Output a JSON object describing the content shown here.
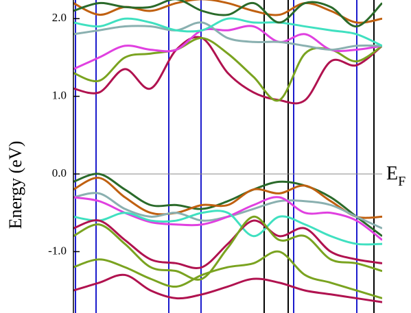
{
  "chart_data": {
    "type": "line",
    "y_label": "Energy (eV)",
    "fermi_label": {
      "main": "E",
      "sub": "F"
    },
    "fermi_level": 0,
    "x": [
      0,
      1,
      2,
      3,
      4,
      5,
      6,
      7,
      8,
      9,
      10,
      11,
      12
    ],
    "xlim": [
      0,
      12
    ],
    "ylim": [
      -1.79,
      2.24
    ],
    "yticks": [
      {
        "value": -1,
        "label": "-1.0"
      },
      {
        "value": 0,
        "label": "0.0"
      },
      {
        "value": 1,
        "label": "1.0"
      },
      {
        "value": 2,
        "label": "2.0"
      }
    ],
    "series": [
      {
        "color": "#b0124f",
        "values": [
          1.1,
          1.05,
          1.35,
          1.1,
          1.6,
          1.75,
          1.3,
          1.05,
          0.95,
          0.95,
          1.45,
          1.4,
          1.65
        ]
      },
      {
        "color": "#7aa320",
        "values": [
          1.3,
          1.2,
          1.5,
          1.55,
          1.6,
          1.75,
          1.55,
          1.25,
          0.95,
          1.55,
          1.6,
          1.45,
          1.65
        ]
      },
      {
        "color": "#e040e0",
        "values": [
          1.35,
          1.5,
          1.65,
          1.6,
          1.6,
          1.85,
          1.85,
          1.9,
          1.7,
          1.8,
          1.6,
          1.6,
          1.65
        ]
      },
      {
        "color": "#8ab0b0",
        "values": [
          1.8,
          1.85,
          1.9,
          1.9,
          1.85,
          1.95,
          1.75,
          1.7,
          1.7,
          1.65,
          1.6,
          1.65,
          1.65
        ]
      },
      {
        "color": "#40e0c0",
        "values": [
          1.95,
          1.9,
          2.0,
          1.95,
          1.85,
          1.85,
          2.0,
          1.95,
          1.95,
          1.9,
          1.85,
          1.8,
          1.65
        ]
      },
      {
        "color": "#c06010",
        "values": [
          2.2,
          2.05,
          2.15,
          2.1,
          2.2,
          2.25,
          2.2,
          2.1,
          2.05,
          2.2,
          2.1,
          1.95,
          2.0
        ]
      },
      {
        "color": "#2a6a2a",
        "values": [
          2.1,
          2.2,
          2.15,
          2.15,
          2.25,
          2.1,
          2.05,
          2.2,
          1.95,
          2.2,
          2.15,
          1.9,
          2.2
        ]
      },
      {
        "color": "#2a6a2a",
        "values": [
          -0.1,
          0.0,
          -0.2,
          -0.4,
          -0.4,
          -0.45,
          -0.35,
          -0.2,
          -0.1,
          -0.15,
          -0.3,
          -0.55,
          -0.8
        ]
      },
      {
        "color": "#c06010",
        "values": [
          -0.2,
          -0.05,
          -0.3,
          -0.5,
          -0.5,
          -0.4,
          -0.4,
          -0.2,
          -0.25,
          -0.15,
          -0.35,
          -0.55,
          -0.55
        ]
      },
      {
        "color": "#8ab0b0",
        "values": [
          -0.3,
          -0.25,
          -0.45,
          -0.55,
          -0.5,
          -0.6,
          -0.55,
          -0.45,
          -0.35,
          -0.35,
          -0.4,
          -0.55,
          -0.7
        ]
      },
      {
        "color": "#e040e0",
        "values": [
          -0.3,
          -0.35,
          -0.5,
          -0.62,
          -0.65,
          -0.65,
          -0.55,
          -0.4,
          -0.3,
          -0.5,
          -0.5,
          -0.6,
          -0.85
        ]
      },
      {
        "color": "#40e0c0",
        "values": [
          -0.55,
          -0.6,
          -0.5,
          -0.6,
          -0.6,
          -0.5,
          -0.5,
          -0.8,
          -0.55,
          -0.65,
          -0.8,
          -0.9,
          -0.9
        ]
      },
      {
        "color": "#b0124f",
        "values": [
          -0.7,
          -0.6,
          -0.85,
          -1.1,
          -1.15,
          -1.2,
          -0.9,
          -0.6,
          -0.8,
          -0.7,
          -1.0,
          -1.1,
          -1.15
        ]
      },
      {
        "color": "#7aa320",
        "values": [
          -0.8,
          -0.65,
          -0.9,
          -1.2,
          -1.25,
          -1.35,
          -0.95,
          -0.55,
          -0.85,
          -0.8,
          -1.1,
          -1.15,
          -1.25
        ]
      },
      {
        "color": "#7aa320",
        "values": [
          -1.2,
          -1.1,
          -1.2,
          -1.35,
          -1.45,
          -1.3,
          -1.2,
          -1.15,
          -1.0,
          -1.3,
          -1.4,
          -1.5,
          -1.6
        ]
      },
      {
        "color": "#b0124f",
        "values": [
          -1.5,
          -1.4,
          -1.3,
          -1.5,
          -1.6,
          -1.55,
          -1.45,
          -1.35,
          -1.4,
          -1.5,
          -1.55,
          -1.6,
          -1.65
        ]
      }
    ]
  }
}
